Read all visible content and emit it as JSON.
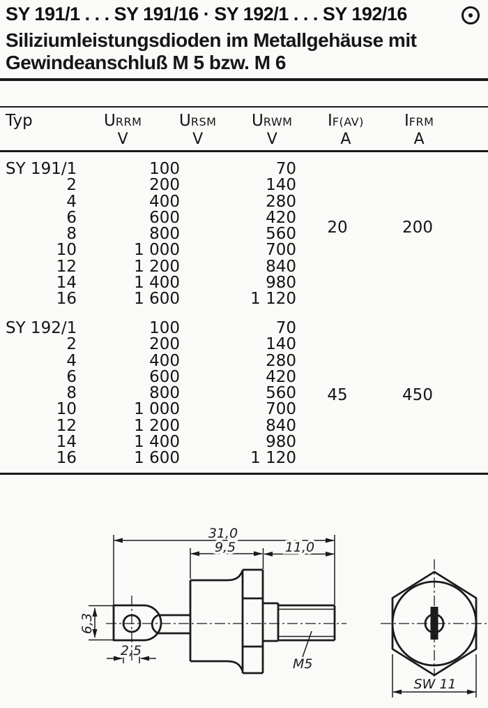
{
  "header": {
    "title": "SY 191/1 . . . SY 191/16 · SY 192/1 . . . SY 192/16",
    "subtitle_line1": "Siliziumleistungsdioden im Metallgehäuse mit",
    "subtitle_line2": "Gewindeanschluß M 5 bzw. M 6",
    "corner_icon": "circled-dot"
  },
  "table": {
    "columns": [
      {
        "label": "Typ",
        "sub": "",
        "unit": ""
      },
      {
        "label": "U",
        "sub": "RRM",
        "unit": "V"
      },
      {
        "label": "U",
        "sub": "RSM",
        "unit": "V"
      },
      {
        "label": "U",
        "sub": "RWM",
        "unit": "V"
      },
      {
        "label": "I",
        "sub": "F(AV)",
        "unit": "A"
      },
      {
        "label": "I",
        "sub": "FRM",
        "unit": "A"
      }
    ],
    "groups": [
      {
        "if_av": "20",
        "ifrm": "200",
        "rows": [
          {
            "typ": "SY 191/1",
            "urrm": "100",
            "urwm": "70"
          },
          {
            "typ": "2",
            "urrm": "200",
            "urwm": "140"
          },
          {
            "typ": "4",
            "urrm": "400",
            "urwm": "280"
          },
          {
            "typ": "6",
            "urrm": "600",
            "urwm": "420"
          },
          {
            "typ": "8",
            "urrm": "800",
            "urwm": "560"
          },
          {
            "typ": "10",
            "urrm": "1 000",
            "urwm": "700"
          },
          {
            "typ": "12",
            "urrm": "1 200",
            "urwm": "840"
          },
          {
            "typ": "14",
            "urrm": "1 400",
            "urwm": "980"
          },
          {
            "typ": "16",
            "urrm": "1 600",
            "urwm": "1 120"
          }
        ]
      },
      {
        "if_av": "45",
        "ifrm": "450",
        "rows": [
          {
            "typ": "SY 192/1",
            "urrm": "100",
            "urwm": "70"
          },
          {
            "typ": "2",
            "urrm": "200",
            "urwm": "140"
          },
          {
            "typ": "4",
            "urrm": "400",
            "urwm": "280"
          },
          {
            "typ": "6",
            "urrm": "600",
            "urwm": "420"
          },
          {
            "typ": "8",
            "urrm": "800",
            "urwm": "560"
          },
          {
            "typ": "10",
            "urrm": "1 000",
            "urwm": "700"
          },
          {
            "typ": "12",
            "urrm": "1 200",
            "urwm": "840"
          },
          {
            "typ": "14",
            "urrm": "1 400",
            "urwm": "980"
          },
          {
            "typ": "16",
            "urrm": "1 600",
            "urwm": "1 120"
          }
        ]
      }
    ]
  },
  "drawing": {
    "dim_total": "31,0",
    "dim_body": "9,5",
    "dim_thread": "11,0",
    "dim_lug": "6,3",
    "dim_hole": "2,5",
    "thread_label": "M5",
    "wrench_size": "SW 11",
    "ink_color": "#1b1b1b"
  }
}
